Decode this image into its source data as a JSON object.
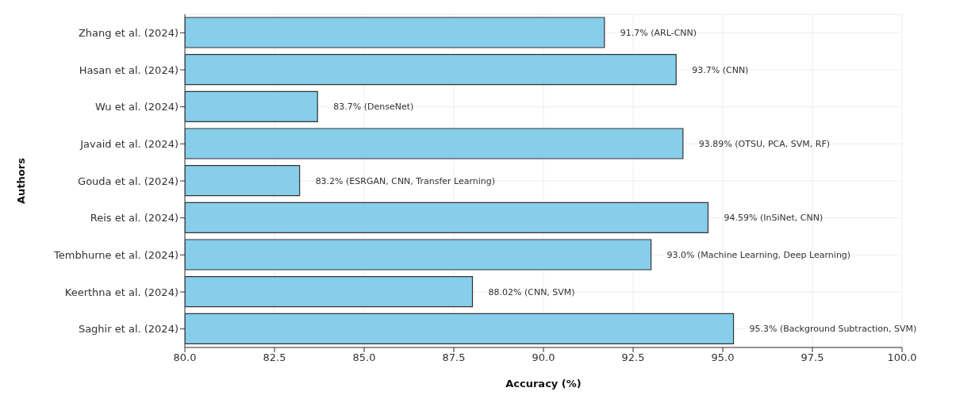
{
  "chart_data": {
    "type": "bar",
    "orientation": "horizontal",
    "xlabel": "Accuracy (%)",
    "ylabel": "Authors",
    "categories": [
      "Zhang et al. (2024)",
      "Hasan et al. (2024)",
      "Wu et al. (2024)",
      "Javaid et al. (2024)",
      "Gouda et al. (2024)",
      "Reis et al. (2024)",
      "Tembhurne et al. (2024)",
      "Keerthna et al. (2024)",
      "Saghir et al. (2024)"
    ],
    "values": [
      91.7,
      93.7,
      83.7,
      93.89,
      83.2,
      94.59,
      93.0,
      88.02,
      95.3
    ],
    "value_labels": [
      "91.7% (ARL-CNN)",
      "93.7% (CNN)",
      "83.7% (DenseNet)",
      "93.89% (OTSU, PCA, SVM, RF)",
      "83.2% (ESRGAN, CNN, Transfer Learning)",
      "94.59% (InSiNet, CNN)",
      "93.0% (Machine Learning, Deep Learning)",
      "88.02% (CNN, SVM)",
      "95.3% (Background Subtraction, SVM)"
    ],
    "color": "#87ceeb",
    "xlim": [
      80,
      100
    ],
    "xticks": [
      {
        "value": 80,
        "label": "80.0"
      },
      82.5,
      {
        "value": 85,
        "label": "85.0"
      },
      87.5,
      {
        "value": 90,
        "label": "90.0"
      },
      92.5,
      {
        "value": 95,
        "label": "95.0"
      },
      97.5,
      {
        "value": 100,
        "label": "100.0"
      }
    ],
    "grid": true
  }
}
